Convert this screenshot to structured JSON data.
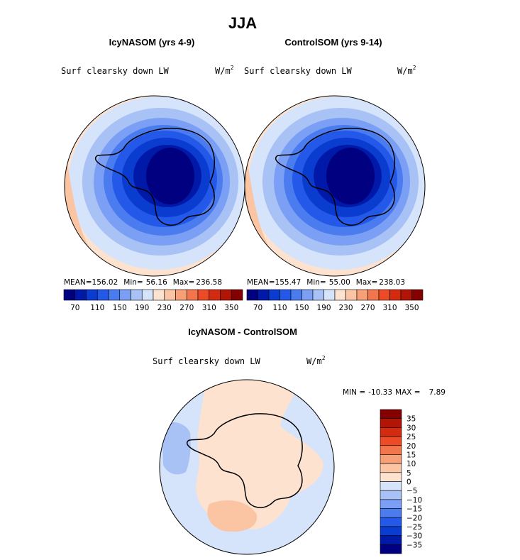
{
  "figure": {
    "title": "JJA"
  },
  "chart_data": [
    {
      "type": "heatmap",
      "projection": "south-polar-stereographic",
      "title": "IcyNASOM (yrs 4-9)",
      "variable": "Surf clearsky down LW",
      "units": "W/m",
      "units_exp": "2",
      "stats": {
        "mean_label": "MEAN=",
        "mean": "156.02",
        "min_label": "Min=",
        "min": "56.16",
        "max_label": "Max=",
        "max": "236.58"
      },
      "colorbar": {
        "levels": [
          50,
          70,
          90,
          110,
          130,
          150,
          170,
          190,
          210,
          230,
          250,
          270,
          290,
          310,
          330,
          350,
          370
        ],
        "tick_labels": [
          "70",
          "110",
          "150",
          "190",
          "230",
          "270",
          "310",
          "350"
        ]
      }
    },
    {
      "type": "heatmap",
      "projection": "south-polar-stereographic",
      "title": "ControlSOM (yrs 9-14)",
      "variable": "Surf clearsky down LW",
      "units": "W/m",
      "units_exp": "2",
      "stats": {
        "mean_label": "MEAN=",
        "mean": "155.47",
        "min_label": "Min=",
        "min": "55.00",
        "max_label": "Max=",
        "max": "238.03"
      },
      "colorbar": {
        "levels": [
          50,
          70,
          90,
          110,
          130,
          150,
          170,
          190,
          210,
          230,
          250,
          270,
          290,
          310,
          330,
          350,
          370
        ],
        "tick_labels": [
          "70",
          "110",
          "150",
          "190",
          "230",
          "270",
          "310",
          "350"
        ]
      }
    },
    {
      "type": "heatmap",
      "projection": "south-polar-stereographic",
      "title": "IcyNASOM - ControlSOM",
      "variable": "Surf clearsky down LW",
      "units": "W/m",
      "units_exp": "2",
      "stats": {
        "min_label": "MIN =",
        "min": "-10.33",
        "max_label": "MAX =",
        "max": "7.89"
      },
      "colorbar": {
        "orientation": "vertical",
        "levels": [
          -40,
          -35,
          -30,
          -25,
          -20,
          -15,
          -10,
          -5,
          0,
          5,
          10,
          15,
          20,
          25,
          30,
          35,
          40
        ],
        "tick_labels": [
          "35",
          "30",
          "25",
          "20",
          "15",
          "10",
          "5",
          "0",
          "−5",
          "−10",
          "−15",
          "−20",
          "−25",
          "−30",
          "−35"
        ]
      }
    }
  ],
  "colors": {
    "palette": [
      "#000080",
      "#0019a8",
      "#0a3cd0",
      "#2358e8",
      "#4a7cf0",
      "#7b9ff4",
      "#a8c2f6",
      "#d5e4fa",
      "#fde2cf",
      "#fbc4a3",
      "#f79f77",
      "#f2754c",
      "#ec4b26",
      "#d42a10",
      "#b01505",
      "#850000"
    ],
    "diff_palette": [
      "#850000",
      "#b01505",
      "#d42a10",
      "#ec4b26",
      "#f2754c",
      "#f79f77",
      "#fbc4a3",
      "#fde2cf",
      "#d5e4fa",
      "#a8c2f6",
      "#7b9ff4",
      "#4a7cf0",
      "#2358e8",
      "#0a3cd0",
      "#0019a8",
      "#000080"
    ],
    "coast": "#000000"
  }
}
